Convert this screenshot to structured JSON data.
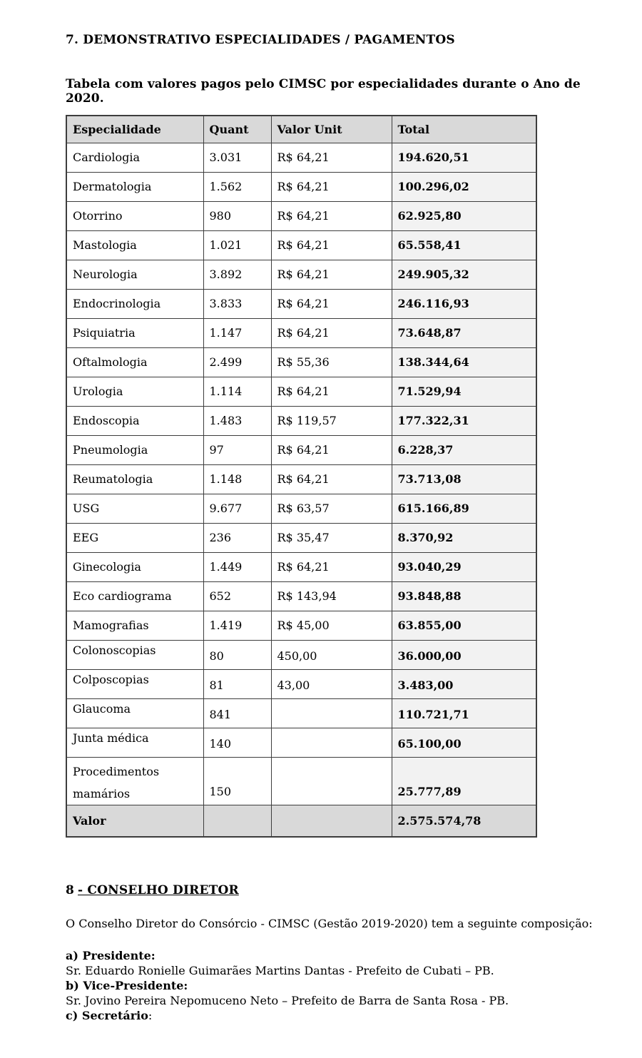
{
  "page": {
    "section7_title": "7. DEMONSTRATIVO ESPECIALIDADES / PAGAMENTOS",
    "table_caption": "Tabela com valores pagos pelo CIMSC por especialidades durante o Ano de 2020."
  },
  "table": {
    "headers": [
      "Especialidade",
      "Quant",
      "Valor Unit",
      "Total"
    ],
    "rows": [
      {
        "name": "Cardiologia",
        "quant": "3.031",
        "unit": "R$ 64,21",
        "total": "194.620,51",
        "cls": ""
      },
      {
        "name": "Dermatologia",
        "quant": "1.562",
        "unit": "R$ 64,21",
        "total": "100.296,02",
        "cls": ""
      },
      {
        "name": "Otorrino",
        "quant": "980",
        "unit": "R$ 64,21",
        "total": "62.925,80",
        "cls": ""
      },
      {
        "name": "Mastologia",
        "quant": "1.021",
        "unit": "R$ 64,21",
        "total": "65.558,41",
        "cls": ""
      },
      {
        "name": "Neurologia",
        "quant": "3.892",
        "unit": "R$ 64,21",
        "total": "249.905,32",
        "cls": ""
      },
      {
        "name": "Endocrinologia",
        "quant": "3.833",
        "unit": "R$ 64,21",
        "total": "246.116,93",
        "cls": ""
      },
      {
        "name": "Psiquiatria",
        "quant": "1.147",
        "unit": "R$ 64,21",
        "total": "73.648,87",
        "cls": ""
      },
      {
        "name": "Oftalmologia",
        "quant": "2.499",
        "unit": "R$ 55,36",
        "total": "138.344,64",
        "cls": ""
      },
      {
        "name": "Urologia",
        "quant": "1.114",
        "unit": "R$ 64,21",
        "total": "71.529,94",
        "cls": ""
      },
      {
        "name": "Endoscopia",
        "quant": "1.483",
        "unit": "R$ 119,57",
        "total": "177.322,31",
        "cls": ""
      },
      {
        "name": "Pneumologia",
        "quant": "97",
        "unit": "R$ 64,21",
        "total": "6.228,37",
        "cls": ""
      },
      {
        "name": "Reumatologia",
        "quant": "1.148",
        "unit": "R$ 64,21",
        "total": "73.713,08",
        "cls": ""
      },
      {
        "name": "USG",
        "quant": "9.677",
        "unit": "R$ 63,57",
        "total": "615.166,89",
        "cls": ""
      },
      {
        "name": "EEG",
        "quant": "236",
        "unit": "R$ 35,47",
        "total": "8.370,92",
        "cls": ""
      },
      {
        "name": "Ginecologia",
        "quant": "1.449",
        "unit": "R$ 64,21",
        "total": "93.040,29",
        "cls": ""
      },
      {
        "name": "Eco cardiograma",
        "quant": "652",
        "unit": "R$ 143,94",
        "total": "93.848,88",
        "cls": ""
      },
      {
        "name": "Mamografias",
        "quant": "1.419",
        "unit": "R$ 45,00",
        "total": "63.855,00",
        "cls": ""
      },
      {
        "name": "Colonoscopias",
        "quant": "80",
        "unit": "450,00",
        "total": "36.000,00",
        "cls": "label-top"
      },
      {
        "name": "Colposcopias",
        "quant": "81",
        "unit": "43,00",
        "total": "3.483,00",
        "cls": "label-top"
      },
      {
        "name": "Glaucoma",
        "quant": "841",
        "unit": "",
        "total": "110.721,71",
        "cls": "label-top"
      },
      {
        "name": "Junta médica",
        "quant": "140",
        "unit": "",
        "total": "65.100,00",
        "cls": "label-top"
      },
      {
        "name": "Procedimentos\nmamários",
        "quant": "150",
        "unit": "",
        "total": "25.777,89",
        "cls": "label-top tall"
      }
    ],
    "footer": {
      "label": "Valor",
      "quant": "",
      "unit": "",
      "total": "2.575.574,78"
    }
  },
  "section8": {
    "number": "8",
    "title": "- CONSELHO DIRETOR",
    "intro": "O Conselho Diretor do Consórcio - CIMSC (Gestão 2019-2020) tem a seguinte composição:",
    "roles": [
      {
        "label": "a) Presidente:",
        "suffix": "",
        "person": "Sr. Eduardo Ronielle Guimarães Martins Dantas - Prefeito de Cubati – PB."
      },
      {
        "label": "b) Vice-Presidente:",
        "suffix": "",
        "person": "Sr. Jovino Pereira Nepomuceno Neto – Prefeito de Barra de Santa Rosa - PB."
      },
      {
        "label": "c) Secretário",
        "suffix": ":",
        "person": ""
      }
    ]
  },
  "colors": {
    "table_header_bg": "#d9d9d9",
    "total_column_bg": "#f2f2f2",
    "footer_row_bg": "#d9d9d9",
    "border": "#3d3d3d"
  }
}
